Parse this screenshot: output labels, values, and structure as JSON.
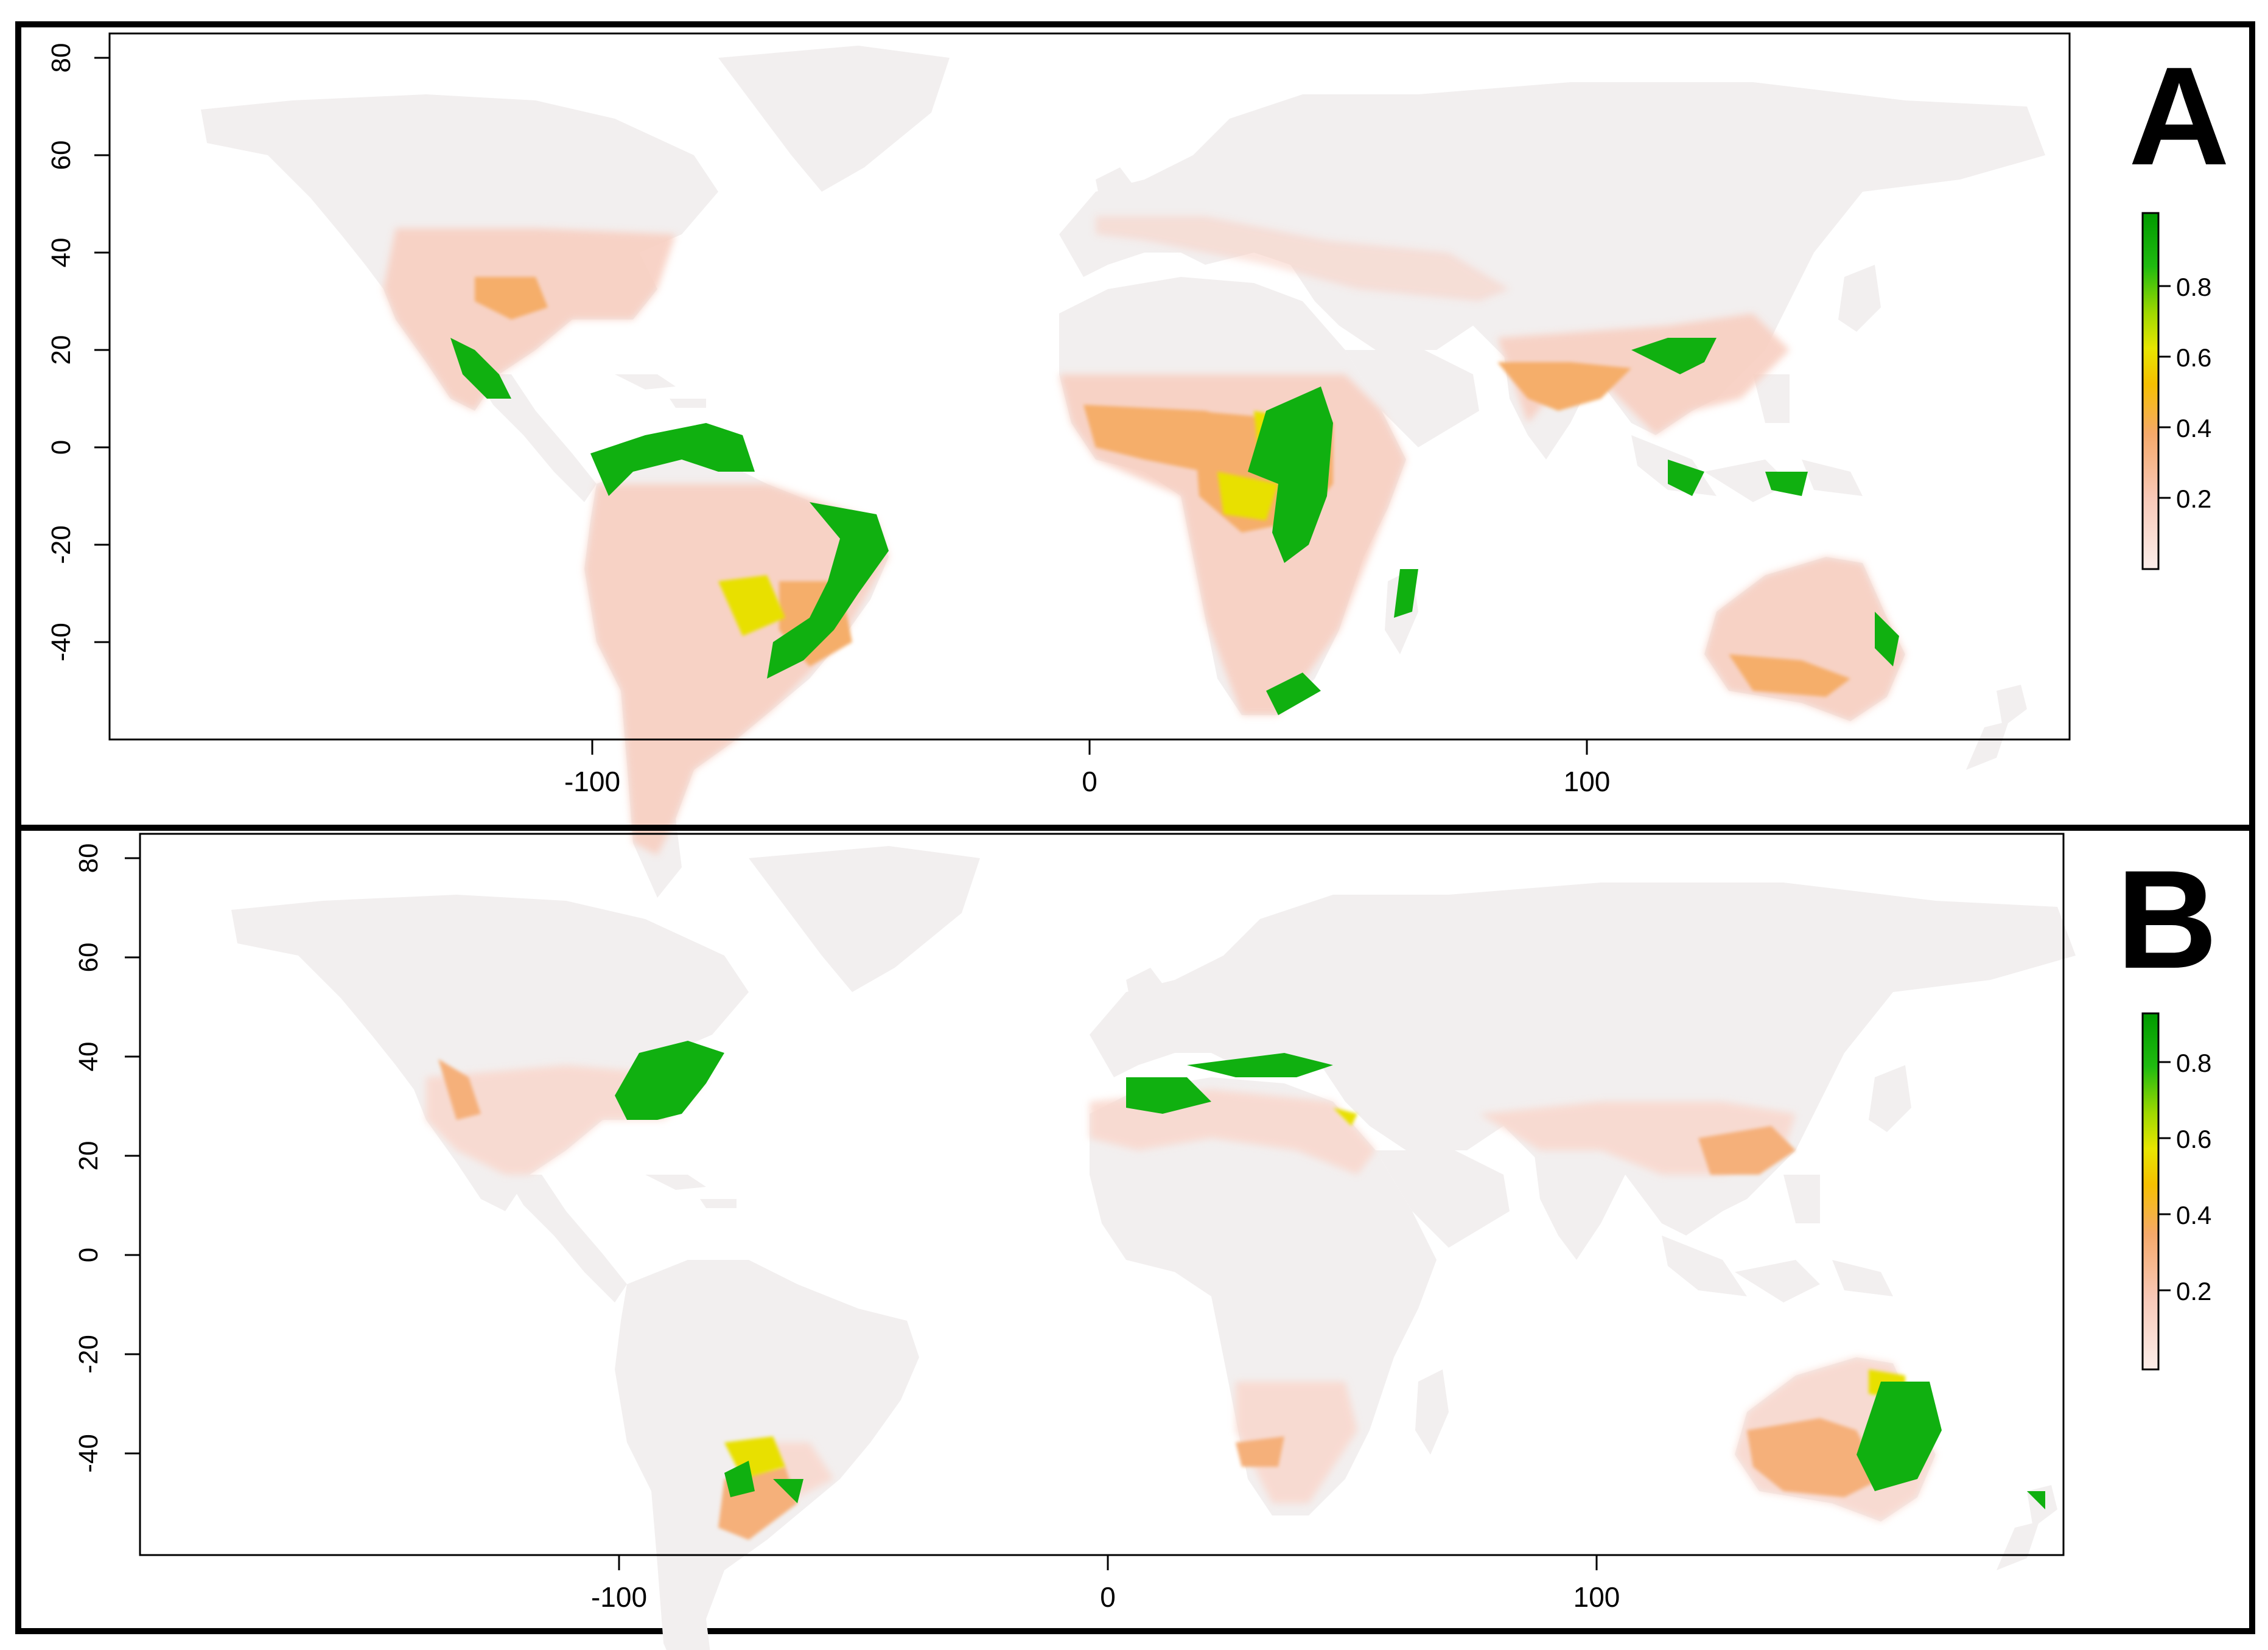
{
  "figure": {
    "panels": [
      {
        "letter": "A",
        "x_ticks": [
          "-100",
          "0",
          "100"
        ],
        "y_ticks": [
          "80",
          "60",
          "40",
          "20",
          "0",
          "-20",
          "-40"
        ],
        "colorbar": {
          "ticks": [
            "0.8",
            "0.6",
            "0.4",
            "0.2"
          ],
          "max": 1.0
        }
      },
      {
        "letter": "B",
        "x_ticks": [
          "-100",
          "0",
          "100"
        ],
        "y_ticks": [
          "80",
          "60",
          "40",
          "20",
          "0",
          "-20",
          "-40"
        ],
        "colorbar": {
          "ticks": [
            "0.8",
            "0.6",
            "0.4",
            "0.2"
          ],
          "max": 0.9
        }
      }
    ]
  },
  "chart_data": [
    {
      "type": "heatmap",
      "panel": "A",
      "x_ticks": [
        -100,
        0,
        100
      ],
      "y_ticks": [
        80,
        60,
        40,
        20,
        0,
        -20,
        -40
      ],
      "xlim": [
        -180,
        180
      ],
      "ylim": [
        -60,
        85
      ],
      "value_range": [
        0,
        1.0
      ],
      "colormap": [
        "#f2f2f2",
        "#f9d0c4",
        "#f5b07a",
        "#f5b800",
        "#f2e600",
        "#c8e200",
        "#00b000"
      ],
      "legend_position": "right"
    },
    {
      "type": "heatmap",
      "panel": "B",
      "x_ticks": [
        -100,
        0,
        100
      ],
      "y_ticks": [
        80,
        60,
        40,
        20,
        0,
        -20,
        -40
      ],
      "xlim": [
        -180,
        180
      ],
      "ylim": [
        -60,
        85
      ],
      "value_range": [
        0,
        0.9
      ],
      "colormap": [
        "#f2f2f2",
        "#f9d0c4",
        "#f5b07a",
        "#f5b800",
        "#f2e600",
        "#c8e200",
        "#00b000"
      ],
      "legend_position": "right"
    }
  ]
}
